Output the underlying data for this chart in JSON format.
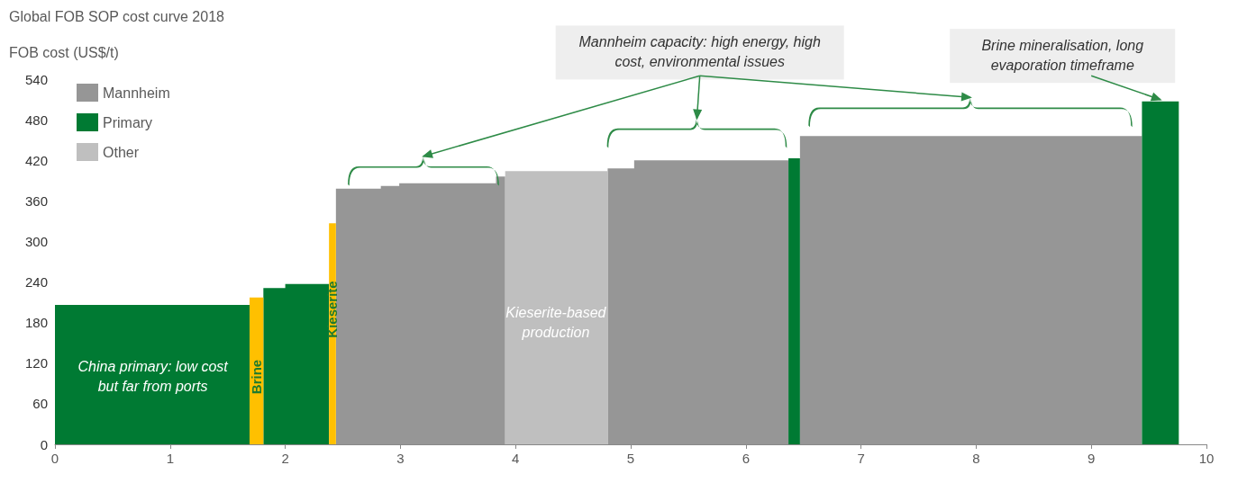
{
  "chart_data": {
    "type": "area",
    "title": "Global FOB SOP cost curve 2018",
    "ylabel": "FOB cost (US$/t)",
    "xlim": [
      0,
      10
    ],
    "xticks": [
      0,
      1,
      2,
      3,
      4,
      5,
      6,
      7,
      8,
      9,
      10
    ],
    "ylim": [
      0,
      540
    ],
    "yticks": [
      0,
      60,
      120,
      180,
      240,
      300,
      360,
      420,
      480,
      540
    ],
    "grid": false,
    "legend": "top left",
    "series": [
      {
        "name": "Mannheim",
        "color": "#969696",
        "x": [
          2.44,
          2.44,
          2.83,
          2.83,
          2.99,
          2.99,
          3.83,
          3.83,
          3.91,
          3.91,
          4.8,
          4.8,
          5.03,
          5.03,
          6.37,
          6.37,
          6.47,
          6.47,
          9.44
        ],
        "values": [
          378,
          378,
          378,
          382,
          382,
          386,
          386,
          396,
          396,
          0,
          0,
          408,
          408,
          420,
          420,
          0,
          0,
          456,
          456
        ]
      },
      {
        "name": "Primary",
        "color": "#007a33",
        "x": [
          0,
          1.69,
          1.69,
          1.81,
          1.81,
          2.0,
          2.0,
          2.38,
          2.38,
          6.37,
          6.37,
          6.47,
          6.47,
          9.44,
          9.44,
          9.76
        ],
        "values": [
          206,
          206,
          0,
          0,
          231,
          231,
          237,
          237,
          0,
          0,
          423,
          423,
          0,
          0,
          507,
          507
        ]
      },
      {
        "name": "Other",
        "color": "#bfbfbf",
        "x": [
          3.91,
          4.8
        ],
        "values": [
          404,
          404
        ]
      },
      {
        "color": "#ffc000",
        "x": [
          1.69,
          1.81,
          1.81,
          2.38,
          2.38,
          2.44
        ],
        "values": [
          217,
          217,
          0,
          0,
          327,
          327
        ]
      }
    ],
    "annotations": [
      "China primary: low cost but far from ports",
      "Brine",
      "Kieserite",
      "Kieserite-based production",
      "Mannheim capacity: high energy, high cost, environmental issues",
      {
        "text": "Brine mineralisation, long evaporation timeframe",
        "x": 9.6,
        "y": 507
      }
    ]
  }
}
